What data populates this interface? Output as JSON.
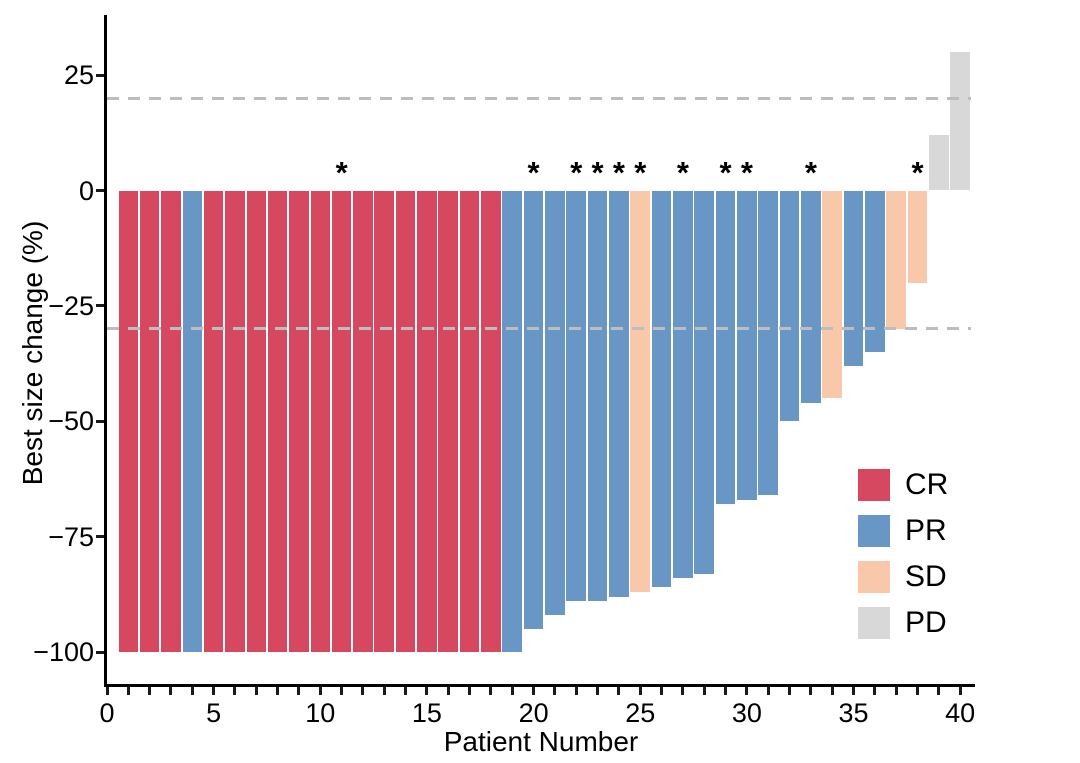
{
  "chart_data": {
    "type": "bar",
    "subtype": "waterfall",
    "title": "",
    "xlabel": "Patient Number",
    "ylabel": "Best size change (%)",
    "xlim": [
      0,
      41
    ],
    "ylim": [
      -107,
      38
    ],
    "grid": false,
    "legend_position": "inside-right",
    "x_tick_labels": [
      {
        "value": 0,
        "label": "0"
      },
      {
        "value": 5,
        "label": "5"
      },
      {
        "value": 10,
        "label": "10"
      },
      {
        "value": 15,
        "label": "15"
      },
      {
        "value": 20,
        "label": "20"
      },
      {
        "value": 25,
        "label": "25"
      },
      {
        "value": 30,
        "label": "30"
      },
      {
        "value": 35,
        "label": "35"
      },
      {
        "value": 40,
        "label": "40"
      }
    ],
    "x_minor_tick_step": 1,
    "y_tick_labels": [
      {
        "value": 25,
        "label": "25"
      },
      {
        "value": 0,
        "label": "0"
      },
      {
        "value": -25,
        "label": "−25"
      },
      {
        "value": -50,
        "label": "−50"
      },
      {
        "value": -75,
        "label": "−75"
      },
      {
        "value": -100,
        "label": "−100"
      }
    ],
    "reference_lines": [
      {
        "value": 20,
        "style": "dashed",
        "color": "#bdbdbd"
      },
      {
        "value": -30,
        "style": "dashed",
        "color": "#bdbdbd"
      }
    ],
    "star_symbol": "*",
    "legend": [
      {
        "key": "CR",
        "label": "CR",
        "color": "#d5485f"
      },
      {
        "key": "PR",
        "label": "PR",
        "color": "#6897c6"
      },
      {
        "key": "SD",
        "label": "SD",
        "color": "#f9c8aa"
      },
      {
        "key": "PD",
        "label": "PD",
        "color": "#d8d8d8"
      }
    ],
    "colors": {
      "CR": "#d5485f",
      "PR": "#6897c6",
      "SD": "#f9c8aa",
      "PD": "#d8d8d8",
      "axis": "#000000",
      "dashed_line": "#bdbdbd"
    },
    "patients": [
      {
        "n": 1,
        "value": -100,
        "response": "CR",
        "star": false
      },
      {
        "n": 2,
        "value": -100,
        "response": "CR",
        "star": false
      },
      {
        "n": 3,
        "value": -100,
        "response": "CR",
        "star": false
      },
      {
        "n": 4,
        "value": -100,
        "response": "PR",
        "star": false
      },
      {
        "n": 5,
        "value": -100,
        "response": "CR",
        "star": false
      },
      {
        "n": 6,
        "value": -100,
        "response": "CR",
        "star": false
      },
      {
        "n": 7,
        "value": -100,
        "response": "CR",
        "star": false
      },
      {
        "n": 8,
        "value": -100,
        "response": "CR",
        "star": false
      },
      {
        "n": 9,
        "value": -100,
        "response": "CR",
        "star": false
      },
      {
        "n": 10,
        "value": -100,
        "response": "CR",
        "star": false
      },
      {
        "n": 11,
        "value": -100,
        "response": "CR",
        "star": true
      },
      {
        "n": 12,
        "value": -100,
        "response": "CR",
        "star": false
      },
      {
        "n": 13,
        "value": -100,
        "response": "CR",
        "star": false
      },
      {
        "n": 14,
        "value": -100,
        "response": "CR",
        "star": false
      },
      {
        "n": 15,
        "value": -100,
        "response": "CR",
        "star": false
      },
      {
        "n": 16,
        "value": -100,
        "response": "CR",
        "star": false
      },
      {
        "n": 17,
        "value": -100,
        "response": "CR",
        "star": false
      },
      {
        "n": 18,
        "value": -100,
        "response": "CR",
        "star": false
      },
      {
        "n": 19,
        "value": -100,
        "response": "PR",
        "star": false
      },
      {
        "n": 20,
        "value": -95,
        "response": "PR",
        "star": true
      },
      {
        "n": 21,
        "value": -92,
        "response": "PR",
        "star": false
      },
      {
        "n": 22,
        "value": -89,
        "response": "PR",
        "star": true
      },
      {
        "n": 23,
        "value": -89,
        "response": "PR",
        "star": true
      },
      {
        "n": 24,
        "value": -88,
        "response": "PR",
        "star": true
      },
      {
        "n": 25,
        "value": -87,
        "response": "SD",
        "star": true
      },
      {
        "n": 26,
        "value": -86,
        "response": "PR",
        "star": false
      },
      {
        "n": 27,
        "value": -84,
        "response": "PR",
        "star": true
      },
      {
        "n": 28,
        "value": -83,
        "response": "PR",
        "star": false
      },
      {
        "n": 29,
        "value": -68,
        "response": "PR",
        "star": true
      },
      {
        "n": 30,
        "value": -67,
        "response": "PR",
        "star": true
      },
      {
        "n": 31,
        "value": -66,
        "response": "PR",
        "star": false
      },
      {
        "n": 32,
        "value": -50,
        "response": "PR",
        "star": false
      },
      {
        "n": 33,
        "value": -46,
        "response": "PR",
        "star": true
      },
      {
        "n": 34,
        "value": -45,
        "response": "SD",
        "star": false
      },
      {
        "n": 35,
        "value": -38,
        "response": "PR",
        "star": false
      },
      {
        "n": 36,
        "value": -35,
        "response": "PR",
        "star": false
      },
      {
        "n": 37,
        "value": -30,
        "response": "SD",
        "star": false
      },
      {
        "n": 38,
        "value": -20,
        "response": "SD",
        "star": true
      },
      {
        "n": 39,
        "value": 12,
        "response": "PD",
        "star": false
      },
      {
        "n": 40,
        "value": 30,
        "response": "PD",
        "star": false
      }
    ]
  }
}
